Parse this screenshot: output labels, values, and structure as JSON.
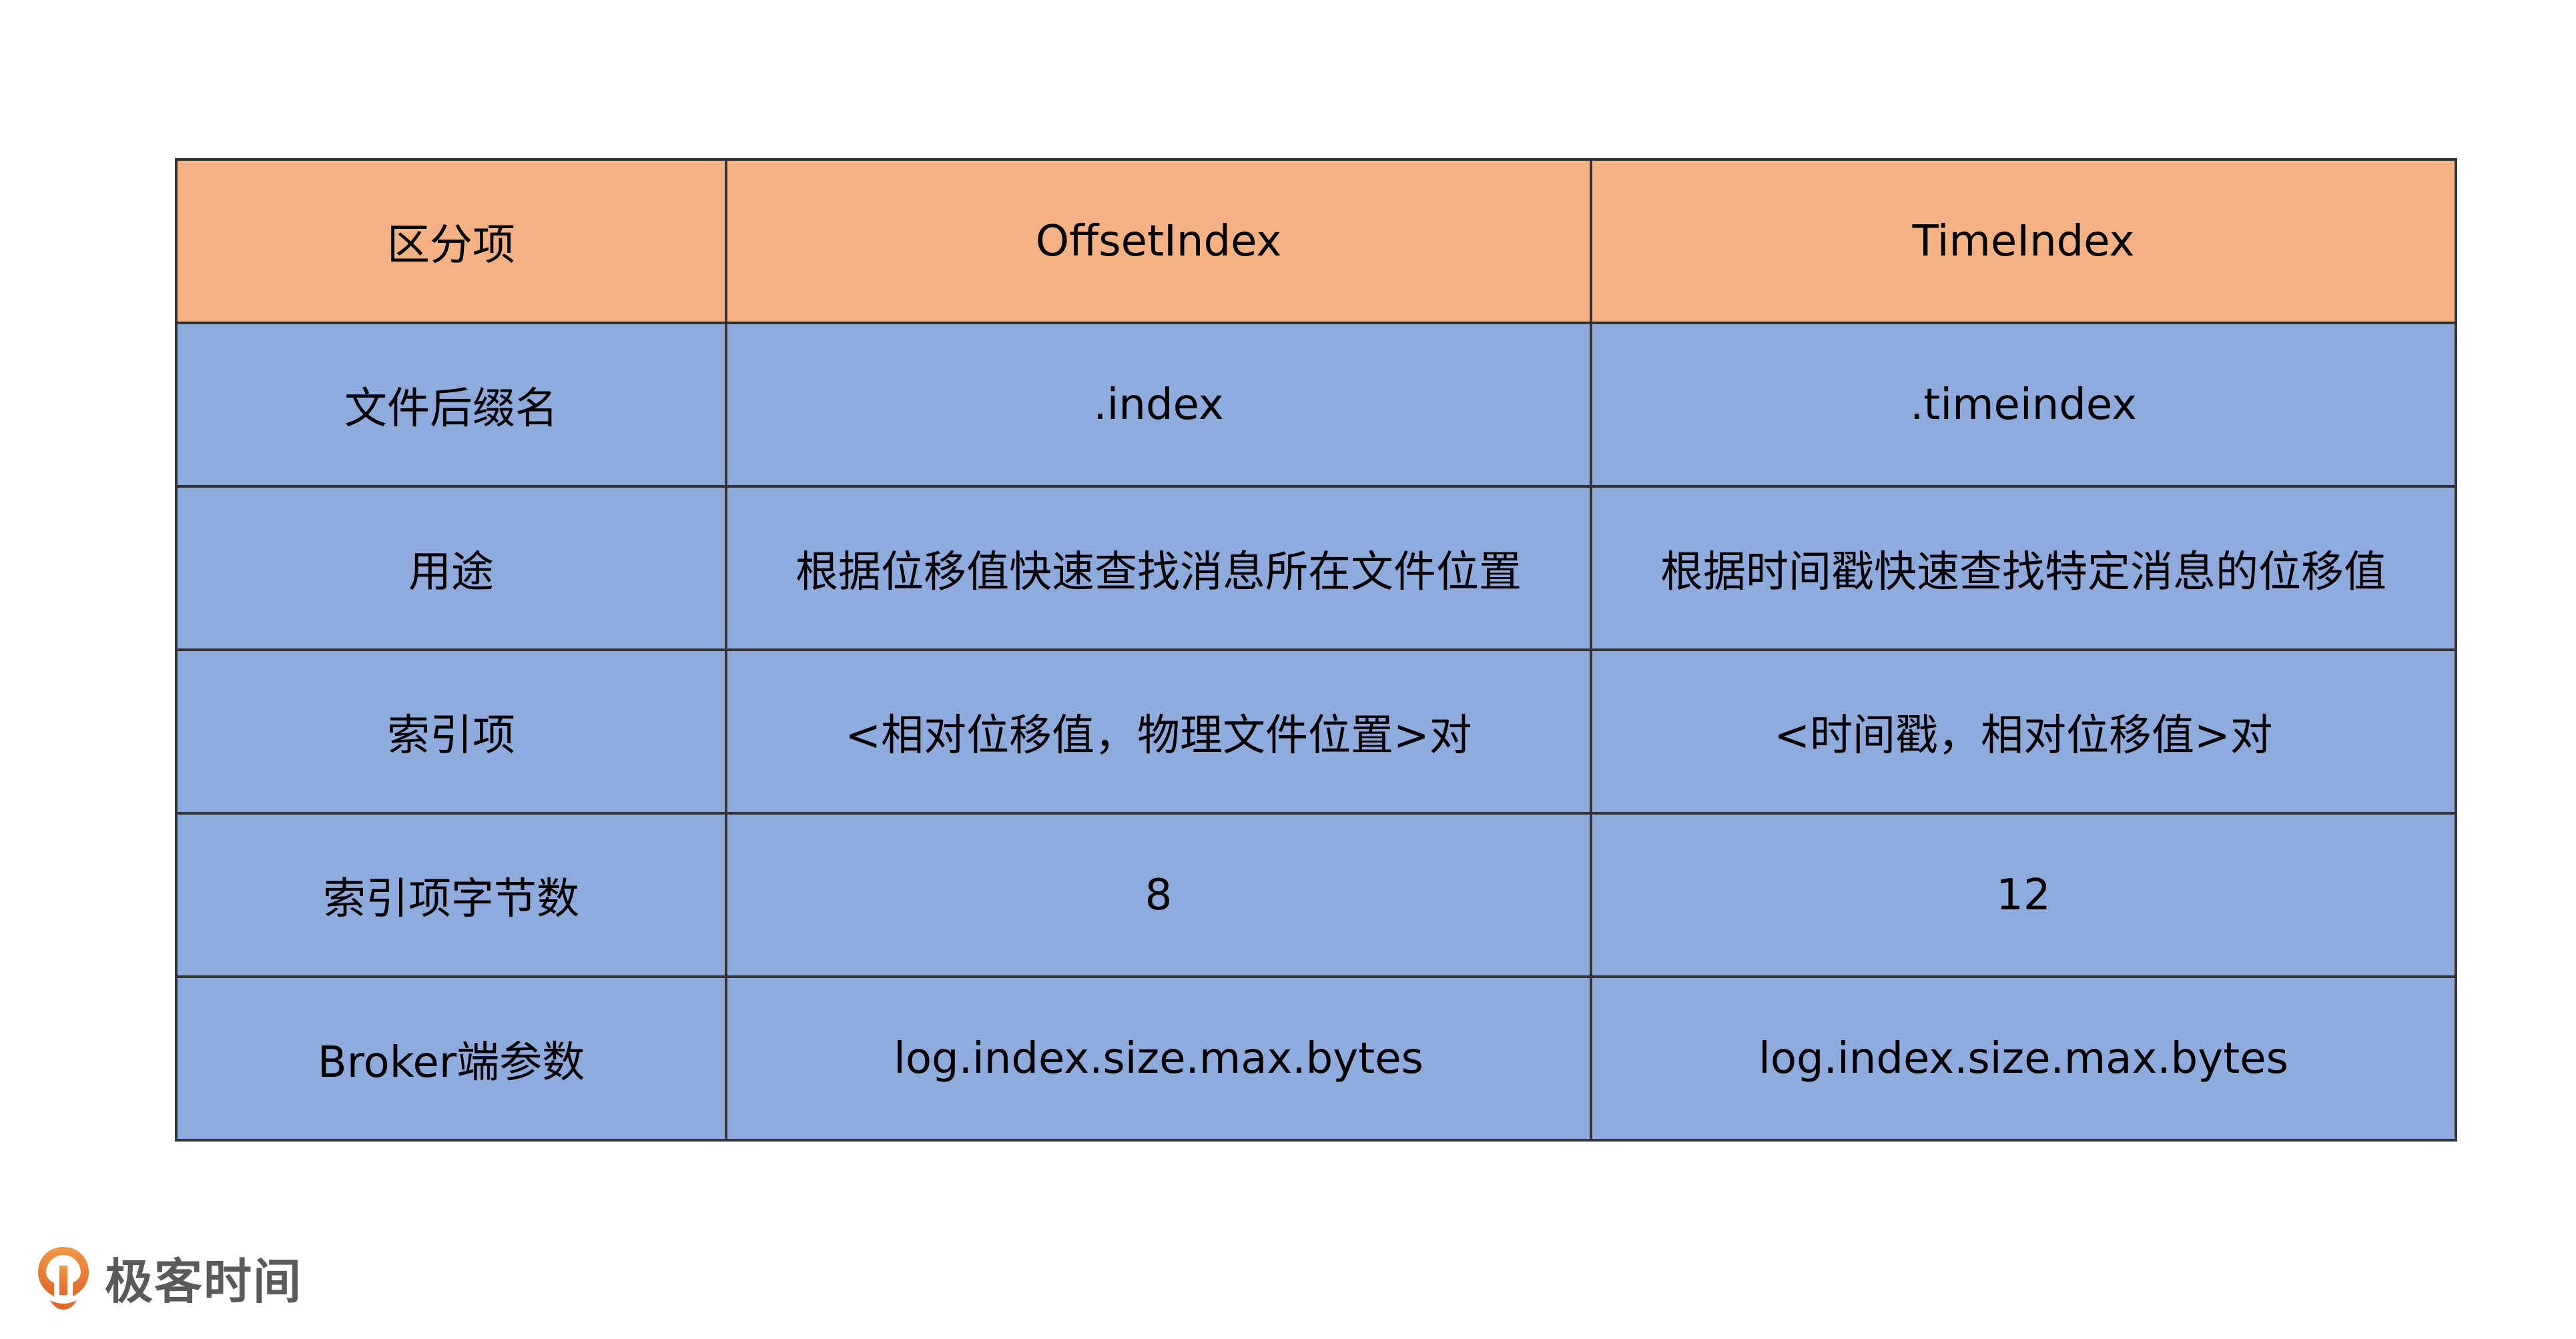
{
  "table": {
    "headers": [
      "区分项",
      "OffsetIndex",
      "TimeIndex"
    ],
    "rows": [
      [
        "文件后缀名",
        ".index",
        ".timeindex"
      ],
      [
        "用途",
        "根据位移值快速查找消息所在文件位置",
        "根据时间戳快速查找特定消息的位移值"
      ],
      [
        "索引项",
        "<相对位移值，物理文件位置>对",
        "<时间戳，相对位移值>对"
      ],
      [
        "索引项字节数",
        "8",
        "12"
      ],
      [
        "Broker端参数",
        "log.index.size.max.bytes",
        "log.index.size.max.bytes"
      ]
    ]
  },
  "colors": {
    "header_bg": "#F4B183",
    "cell_bg": "#8FAADC",
    "border": "#333333",
    "logo_orange": "#E87A2E"
  },
  "logo": {
    "text": "极客时间",
    "icon": "geektime-logo-icon"
  }
}
